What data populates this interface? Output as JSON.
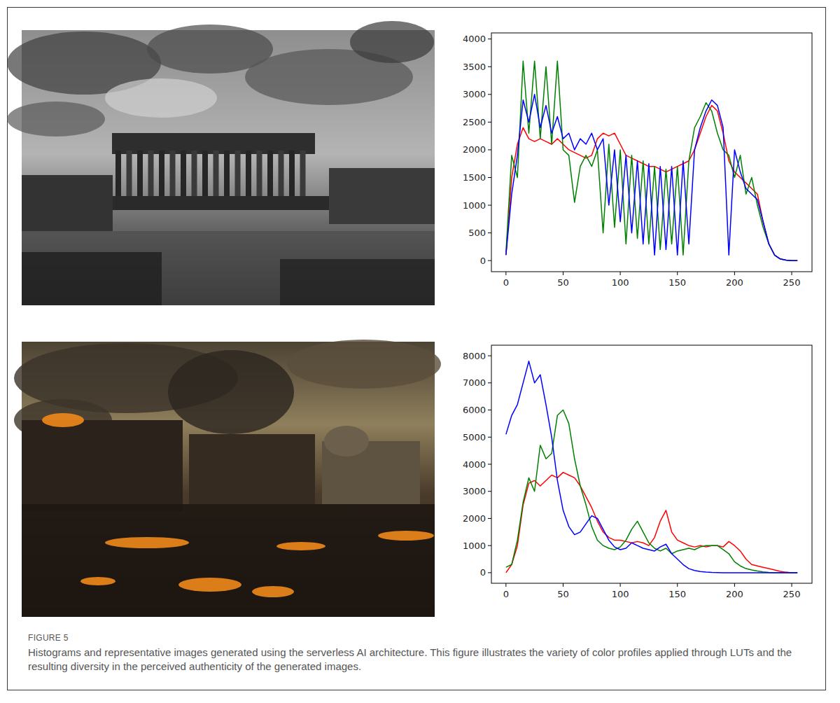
{
  "chart_data": [
    {
      "type": "line",
      "x": [
        0,
        5,
        10,
        15,
        20,
        25,
        30,
        35,
        40,
        45,
        50,
        55,
        60,
        65,
        70,
        75,
        80,
        85,
        90,
        95,
        100,
        105,
        110,
        115,
        120,
        125,
        130,
        135,
        140,
        145,
        150,
        155,
        160,
        165,
        170,
        175,
        180,
        185,
        190,
        195,
        200,
        205,
        210,
        215,
        220,
        225,
        230,
        235,
        240,
        245,
        250,
        255
      ],
      "xlim": [
        -12.75,
        267.75
      ],
      "xticks": [
        0,
        50,
        100,
        150,
        200,
        250
      ],
      "ylim": [
        -200,
        4110
      ],
      "yticks": [
        0,
        500,
        1000,
        1500,
        2000,
        2500,
        3000,
        3500,
        4000
      ],
      "grid": false,
      "series": [
        {
          "color": "#ff0000",
          "values": [
            100,
            1500,
            2100,
            2400,
            2200,
            2150,
            2200,
            2150,
            2100,
            2200,
            2100,
            2000,
            1950,
            1900,
            1850,
            1900,
            2200,
            2300,
            2250,
            2300,
            2100,
            1900,
            1850,
            1800,
            1750,
            1700,
            1700,
            1650,
            1600,
            1650,
            1700,
            1750,
            1800,
            2000,
            2300,
            2600,
            2800,
            2700,
            2300,
            1800,
            1600,
            1500,
            1400,
            1300,
            1200,
            700,
            300,
            100,
            30,
            10,
            0,
            0
          ]
        },
        {
          "color": "#008000",
          "values": [
            150,
            1900,
            1500,
            3600,
            2300,
            3600,
            2200,
            3500,
            2100,
            3600,
            2000,
            1900,
            1050,
            1700,
            1900,
            1700,
            2000,
            500,
            2100,
            600,
            2000,
            300,
            1900,
            400,
            1800,
            300,
            1700,
            200,
            1650,
            300,
            1700,
            100,
            1800,
            2400,
            2600,
            2850,
            2700,
            2300,
            2000,
            1900,
            1500,
            1900,
            1200,
            1500,
            1000,
            600,
            300,
            100,
            30,
            10,
            0,
            0
          ]
        },
        {
          "color": "#0000ff",
          "values": [
            100,
            1200,
            1900,
            2900,
            2500,
            3000,
            2400,
            2800,
            2300,
            2600,
            2200,
            2300,
            2000,
            2200,
            2100,
            2300,
            2000,
            2200,
            1000,
            2000,
            700,
            1900,
            500,
            1800,
            300,
            1750,
            100,
            1700,
            200,
            1700,
            100,
            1800,
            300,
            2000,
            2400,
            2700,
            2900,
            2800,
            2400,
            100,
            2000,
            1600,
            1300,
            1200,
            1100,
            700,
            300,
            100,
            30,
            10,
            0,
            0
          ]
        }
      ]
    },
    {
      "type": "line",
      "x": [
        0,
        5,
        10,
        15,
        20,
        25,
        30,
        35,
        40,
        45,
        50,
        55,
        60,
        65,
        70,
        75,
        80,
        85,
        90,
        95,
        100,
        105,
        110,
        115,
        120,
        125,
        130,
        135,
        140,
        145,
        150,
        155,
        160,
        165,
        170,
        175,
        180,
        185,
        190,
        195,
        200,
        205,
        210,
        215,
        220,
        225,
        230,
        235,
        240,
        245,
        250,
        255
      ],
      "xlim": [
        -12.75,
        267.75
      ],
      "xticks": [
        0,
        50,
        100,
        150,
        200,
        250
      ],
      "ylim": [
        -390,
        8390
      ],
      "yticks": [
        0,
        1000,
        2000,
        3000,
        4000,
        5000,
        6000,
        7000,
        8000
      ],
      "grid": false,
      "series": [
        {
          "color": "#ff0000",
          "values": [
            0,
            300,
            1000,
            2500,
            3300,
            3400,
            3200,
            3400,
            3600,
            3500,
            3700,
            3600,
            3500,
            3200,
            2800,
            2400,
            1900,
            1500,
            1300,
            1200,
            1200,
            1150,
            1100,
            1150,
            1100,
            1000,
            1300,
            1900,
            2300,
            1500,
            1200,
            1100,
            1000,
            950,
            1000,
            950,
            1000,
            1000,
            950,
            1150,
            1000,
            800,
            500,
            300,
            250,
            200,
            150,
            100,
            50,
            20,
            0,
            0
          ]
        },
        {
          "color": "#008000",
          "values": [
            200,
            300,
            1200,
            2600,
            3500,
            3000,
            4700,
            4200,
            4400,
            5800,
            6000,
            5500,
            4200,
            3200,
            2500,
            1700,
            1200,
            1000,
            900,
            850,
            950,
            1200,
            1600,
            1900,
            1500,
            1100,
            900,
            800,
            900,
            700,
            800,
            850,
            900,
            850,
            950,
            1000,
            1000,
            1000,
            850,
            700,
            400,
            250,
            150,
            100,
            60,
            30,
            10,
            0,
            0,
            0,
            0,
            0
          ]
        },
        {
          "color": "#0000ff",
          "values": [
            5100,
            5800,
            6200,
            7000,
            7800,
            7000,
            7300,
            6200,
            5000,
            3400,
            2300,
            1700,
            1400,
            1500,
            1800,
            2100,
            2000,
            1600,
            1200,
            950,
            850,
            900,
            1100,
            1000,
            900,
            850,
            800,
            950,
            1050,
            700,
            500,
            300,
            150,
            80,
            40,
            20,
            10,
            5,
            0,
            0,
            0,
            0,
            0,
            0,
            0,
            0,
            0,
            0,
            0,
            0,
            0,
            0
          ]
        }
      ]
    }
  ],
  "caption": {
    "label": "FIGURE 5",
    "text": "Histograms and representative images generated using the serverless AI architecture. This figure illustrates the variety of color profiles applied through LUTs and the resulting diversity in the perceived authenticity of the generated images."
  }
}
